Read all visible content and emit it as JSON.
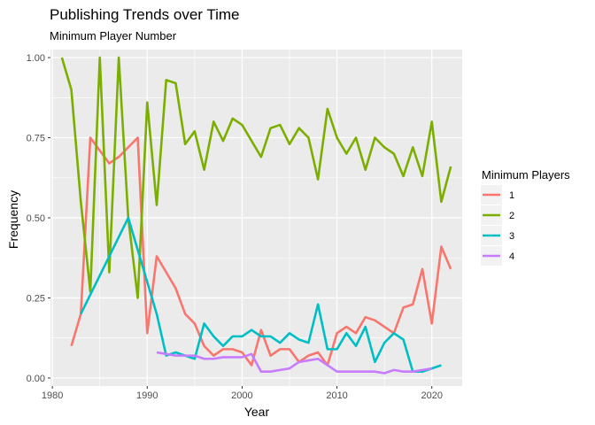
{
  "chart_data": {
    "type": "line",
    "title": "Publishing Trends over Time",
    "subtitle": "Minimum Player Number",
    "xlabel": "Year",
    "ylabel": "Frequency",
    "xlim": [
      1979.8,
      2023.2
    ],
    "ylim": [
      -0.025,
      1.025
    ],
    "x_ticks": [
      1980,
      1990,
      2000,
      2010,
      2020
    ],
    "x_tick_labels": [
      "1980",
      "1990",
      "2000",
      "2010",
      "2020"
    ],
    "y_ticks": [
      0,
      0.25,
      0.5,
      0.75,
      1
    ],
    "y_tick_labels": [
      "0.00",
      "0.25",
      "0.50",
      "0.75",
      "1.00"
    ],
    "grid": true,
    "background": "#ebebeb",
    "legend": {
      "title": "Minimum Players",
      "position": "right"
    },
    "series": [
      {
        "name": "1",
        "color": "#f8766d",
        "points": [
          [
            1982,
            0.1
          ],
          [
            1983,
            0.2
          ],
          [
            1984,
            0.75
          ],
          [
            1985,
            0.71
          ],
          [
            1986,
            0.67
          ],
          [
            1987,
            0.69
          ],
          [
            1988,
            0.72
          ],
          [
            1989,
            0.75
          ],
          [
            1990,
            0.14
          ],
          [
            1991,
            0.38
          ],
          [
            1992,
            0.33
          ],
          [
            1993,
            0.28
          ],
          [
            1994,
            0.2
          ],
          [
            1995,
            0.17
          ],
          [
            1996,
            0.1
          ],
          [
            1997,
            0.07
          ],
          [
            1998,
            0.09
          ],
          [
            1999,
            0.09
          ],
          [
            2000,
            0.08
          ],
          [
            2001,
            0.04
          ],
          [
            2002,
            0.15
          ],
          [
            2003,
            0.07
          ],
          [
            2004,
            0.09
          ],
          [
            2005,
            0.09
          ],
          [
            2006,
            0.05
          ],
          [
            2007,
            0.07
          ],
          [
            2008,
            0.08
          ],
          [
            2009,
            0.04
          ],
          [
            2010,
            0.14
          ],
          [
            2011,
            0.16
          ],
          [
            2012,
            0.14
          ],
          [
            2013,
            0.19
          ],
          [
            2014,
            0.18
          ],
          [
            2015,
            0.16
          ],
          [
            2016,
            0.14
          ],
          [
            2017,
            0.22
          ],
          [
            2018,
            0.23
          ],
          [
            2019,
            0.34
          ],
          [
            2020,
            0.17
          ],
          [
            2021,
            0.41
          ],
          [
            2022,
            0.34
          ]
        ]
      },
      {
        "name": "2",
        "color": "#7cae00",
        "points": [
          [
            1981,
            1.0
          ],
          [
            1982,
            0.9
          ],
          [
            1983,
            0.55
          ],
          [
            1984,
            0.27
          ],
          [
            1985,
            1.0
          ],
          [
            1986,
            0.33
          ],
          [
            1987,
            1.0
          ],
          [
            1988,
            0.5
          ],
          [
            1989,
            0.25
          ],
          [
            1990,
            0.86
          ],
          [
            1991,
            0.54
          ],
          [
            1992,
            0.93
          ],
          [
            1993,
            0.92
          ],
          [
            1994,
            0.73
          ],
          [
            1995,
            0.77
          ],
          [
            1996,
            0.65
          ],
          [
            1997,
            0.8
          ],
          [
            1998,
            0.74
          ],
          [
            1999,
            0.81
          ],
          [
            2000,
            0.79
          ],
          [
            2001,
            0.74
          ],
          [
            2002,
            0.69
          ],
          [
            2003,
            0.78
          ],
          [
            2004,
            0.79
          ],
          [
            2005,
            0.73
          ],
          [
            2006,
            0.78
          ],
          [
            2007,
            0.75
          ],
          [
            2008,
            0.62
          ],
          [
            2009,
            0.84
          ],
          [
            2010,
            0.75
          ],
          [
            2011,
            0.7
          ],
          [
            2012,
            0.75
          ],
          [
            2013,
            0.65
          ],
          [
            2014,
            0.75
          ],
          [
            2015,
            0.72
          ],
          [
            2016,
            0.7
          ],
          [
            2017,
            0.63
          ],
          [
            2018,
            0.72
          ],
          [
            2019,
            0.63
          ],
          [
            2020,
            0.8
          ],
          [
            2021,
            0.55
          ],
          [
            2022,
            0.66
          ]
        ]
      },
      {
        "name": "3",
        "color": "#00bfc4",
        "points": [
          [
            1983,
            0.2
          ],
          [
            1988,
            0.5
          ],
          [
            1991,
            0.2
          ],
          [
            1992,
            0.07
          ],
          [
            1993,
            0.08
          ],
          [
            1994,
            0.07
          ],
          [
            1995,
            0.06
          ],
          [
            1996,
            0.17
          ],
          [
            1997,
            0.13
          ],
          [
            1998,
            0.1
          ],
          [
            1999,
            0.13
          ],
          [
            2000,
            0.13
          ],
          [
            2001,
            0.15
          ],
          [
            2002,
            0.13
          ],
          [
            2003,
            0.13
          ],
          [
            2004,
            0.11
          ],
          [
            2005,
            0.14
          ],
          [
            2006,
            0.12
          ],
          [
            2007,
            0.11
          ],
          [
            2008,
            0.23
          ],
          [
            2009,
            0.09
          ],
          [
            2010,
            0.09
          ],
          [
            2011,
            0.14
          ],
          [
            2012,
            0.1
          ],
          [
            2013,
            0.16
          ],
          [
            2014,
            0.05
          ],
          [
            2015,
            0.11
          ],
          [
            2016,
            0.14
          ],
          [
            2017,
            0.12
          ],
          [
            2018,
            0.02
          ],
          [
            2019,
            0.02
          ],
          [
            2020,
            0.03
          ],
          [
            2021,
            0.04
          ]
        ]
      },
      {
        "name": "4",
        "color": "#c77cff",
        "points": [
          [
            1991,
            0.08
          ],
          [
            1992,
            0.075
          ],
          [
            1993,
            0.07
          ],
          [
            1994,
            0.07
          ],
          [
            1995,
            0.07
          ],
          [
            1996,
            0.06
          ],
          [
            1997,
            0.06
          ],
          [
            1998,
            0.065
          ],
          [
            1999,
            0.065
          ],
          [
            2000,
            0.065
          ],
          [
            2001,
            0.075
          ],
          [
            2002,
            0.02
          ],
          [
            2003,
            0.02
          ],
          [
            2004,
            0.025
          ],
          [
            2005,
            0.03
          ],
          [
            2006,
            0.05
          ],
          [
            2007,
            0.055
          ],
          [
            2008,
            0.06
          ],
          [
            2009,
            0.04
          ],
          [
            2010,
            0.02
          ],
          [
            2011,
            0.02
          ],
          [
            2012,
            0.02
          ],
          [
            2013,
            0.02
          ],
          [
            2014,
            0.02
          ],
          [
            2015,
            0.015
          ],
          [
            2016,
            0.025
          ],
          [
            2017,
            0.02
          ],
          [
            2018,
            0.02
          ],
          [
            2019,
            0.025
          ],
          [
            2020,
            0.03
          ]
        ]
      }
    ]
  }
}
